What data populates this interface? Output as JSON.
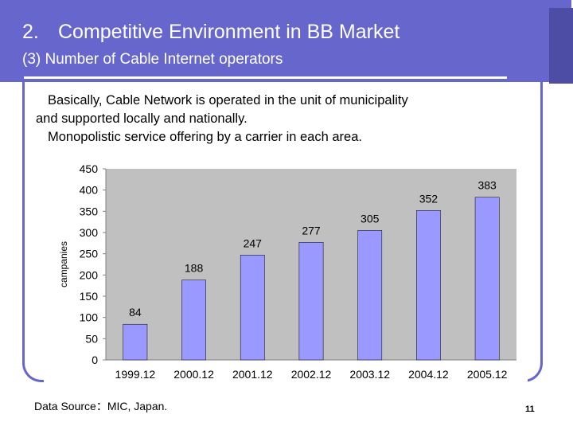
{
  "header": {
    "title_number": "2.",
    "title_text": "Competitive Environment in BB Market",
    "subtitle": "(3) Number of Cable Internet operators"
  },
  "body": {
    "line1": "Basically, Cable Network is operated in the unit of municipality",
    "line2": "and supported locally and nationally.",
    "line3": "Monopolistic service offering by a carrier in each area."
  },
  "chart_data": {
    "type": "bar",
    "categories": [
      "1999.12",
      "2000.12",
      "2001.12",
      "2002.12",
      "2003.12",
      "2004.12",
      "2005.12"
    ],
    "values": [
      84,
      188,
      247,
      277,
      305,
      352,
      383
    ],
    "title": "",
    "xlabel": "",
    "ylabel": "campanies",
    "ylim": [
      0,
      450
    ],
    "yticks": [
      0,
      50,
      100,
      150,
      200,
      250,
      300,
      350,
      400,
      450
    ],
    "grid": false,
    "colors": {
      "bar": "#9999ff",
      "plot_bg": "#c0c0c0",
      "bar_stroke": "#000000"
    }
  },
  "footer": {
    "source": "Data Source：MIC, Japan.",
    "page": "11"
  }
}
